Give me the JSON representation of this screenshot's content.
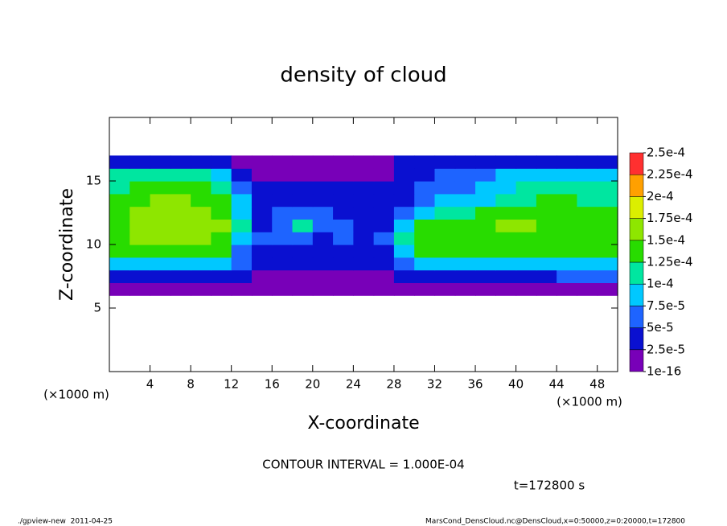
{
  "chart_data": {
    "type": "contour",
    "title": "density of cloud",
    "x_label": "X-coordinate",
    "y_label": "Z-coordinate",
    "x_unit_label": "(×1000 m)",
    "y_unit_label": "(×1000 m)",
    "contour_note": "CONTOUR INTERVAL = 1.000E-04",
    "time_label": "t=172800 s",
    "footer_left": "./gpview-new  2011-04-25",
    "footer_right": "MarsCond_DensCloud.nc@DensCloud,x=0:50000,z=0:20000,t=172800",
    "xlim": [
      0,
      50
    ],
    "ylim": [
      0,
      20
    ],
    "xticks": [
      4,
      8,
      12,
      16,
      20,
      24,
      28,
      32,
      36,
      40,
      44,
      48
    ],
    "yticks": [
      5,
      10,
      15
    ],
    "x": [
      1,
      3,
      5,
      7,
      9,
      11,
      13,
      15,
      17,
      19,
      21,
      23,
      25,
      27,
      29,
      31,
      33,
      35,
      37,
      39,
      41,
      43,
      45,
      47,
      49
    ],
    "y": [
      6.5,
      7.5,
      8.5,
      9.5,
      10.5,
      11.5,
      12.5,
      13.5,
      14.5,
      15.5,
      16.5
    ],
    "z": [
      [
        1.5e-05,
        1.5e-05,
        1.5e-05,
        1.5e-05,
        1.5e-05,
        1.5e-05,
        1.5e-05,
        1.5e-05,
        1.5e-05,
        1.5e-05,
        1.5e-05,
        1.5e-05,
        1.5e-05,
        1.5e-05,
        1.5e-05,
        1.5e-05,
        1.5e-05,
        1.5e-05,
        1.5e-05,
        1.5e-05,
        1.5e-05,
        1.5e-05,
        1.5e-05,
        1.5e-05,
        1.5e-05
      ],
      [
        4e-05,
        4e-05,
        4e-05,
        4e-05,
        4e-05,
        4e-05,
        3e-05,
        2e-05,
        2e-05,
        2e-05,
        2e-05,
        2e-05,
        2e-05,
        2e-05,
        4e-05,
        4e-05,
        4e-05,
        4e-05,
        4e-05,
        4e-05,
        4e-05,
        4e-05,
        5e-05,
        5e-05,
        5e-05
      ],
      [
        8.5e-05,
        8.5e-05,
        8.5e-05,
        8.5e-05,
        8.5e-05,
        8.5e-05,
        5e-05,
        3.5e-05,
        3.5e-05,
        3.5e-05,
        3.5e-05,
        3.5e-05,
        3.5e-05,
        3.5e-05,
        5e-05,
        9e-05,
        9e-05,
        9e-05,
        9e-05,
        9e-05,
        9e-05,
        9e-05,
        9e-05,
        9e-05,
        9e-05
      ],
      [
        0.00013,
        0.00013,
        0.00013,
        0.00013,
        0.00013,
        0.00013,
        7e-05,
        4.5e-05,
        4.5e-05,
        4.5e-05,
        4.5e-05,
        4.5e-05,
        4.5e-05,
        4.5e-05,
        8e-05,
        0.000125,
        0.000125,
        0.000125,
        0.000125,
        0.000125,
        0.000125,
        0.000125,
        0.000125,
        0.000125,
        0.000125
      ],
      [
        0.00014,
        0.000155,
        0.00016,
        0.00016,
        0.000155,
        0.000145,
        9e-05,
        5e-05,
        6e-05,
        5e-05,
        4e-05,
        5e-05,
        4e-05,
        5e-05,
        0.0001,
        0.00013,
        0.000135,
        0.00014,
        0.000145,
        0.000145,
        0.000145,
        0.00014,
        0.00014,
        0.000135,
        0.00013
      ],
      [
        0.000145,
        0.00016,
        0.00017,
        0.00017,
        0.00016,
        0.00015,
        0.0001,
        4e-05,
        5e-05,
        0.000105,
        6e-05,
        5e-05,
        4e-05,
        4e-05,
        9e-05,
        0.000125,
        0.00013,
        0.00014,
        0.000145,
        0.00015,
        0.00015,
        0.000145,
        0.00014,
        0.000135,
        0.00013
      ],
      [
        0.000145,
        0.00016,
        0.000165,
        0.000165,
        0.000155,
        0.000145,
        9e-05,
        4e-05,
        5e-05,
        6e-05,
        5e-05,
        4e-05,
        4e-05,
        3e-05,
        5e-05,
        9e-05,
        0.00011,
        0.00012,
        0.000135,
        0.00014,
        0.00014,
        0.000135,
        0.00013,
        0.00013,
        0.000125
      ],
      [
        0.000135,
        0.000145,
        0.00015,
        0.00015,
        0.000145,
        0.000135,
        8e-05,
        3.5e-05,
        4e-05,
        4e-05,
        3.5e-05,
        3e-05,
        3e-05,
        3e-05,
        4e-05,
        6e-05,
        8e-05,
        9e-05,
        9e-05,
        0.00011,
        0.00012,
        0.000125,
        0.000125,
        0.00012,
        0.00012
      ],
      [
        0.00012,
        0.000125,
        0.00013,
        0.00013,
        0.000125,
        0.000115,
        6e-05,
        3e-05,
        3e-05,
        3e-05,
        3e-05,
        3e-05,
        3e-05,
        3e-05,
        3e-05,
        5e-05,
        6e-05,
        7e-05,
        8e-05,
        9e-05,
        0.000105,
        0.00011,
        0.00011,
        0.00011,
        0.000105
      ],
      [
        0.0001,
        0.000105,
        0.000105,
        0.000105,
        0.0001,
        9e-05,
        4e-05,
        2e-05,
        2e-05,
        2e-05,
        2e-05,
        2e-05,
        2e-05,
        2e-05,
        3e-05,
        4e-05,
        5e-05,
        6e-05,
        7e-05,
        8e-05,
        8.5e-05,
        9e-05,
        9e-05,
        9e-05,
        9e-05
      ],
      [
        3e-05,
        3e-05,
        3e-05,
        3e-05,
        3e-05,
        3e-05,
        2e-05,
        1e-05,
        1e-05,
        1e-05,
        1e-05,
        1e-05,
        1e-05,
        1e-05,
        3e-05,
        3e-05,
        3e-05,
        3e-05,
        3e-05,
        3e-05,
        3e-05,
        3e-05,
        3e-05,
        3e-05,
        3e-05
      ]
    ],
    "levels": [
      {
        "value": 1e-16,
        "label": "1e-16"
      },
      {
        "value": 2.5e-05,
        "label": "2.5e-5"
      },
      {
        "value": 5e-05,
        "label": "5e-5"
      },
      {
        "value": 7.5e-05,
        "label": "7.5e-5"
      },
      {
        "value": 0.0001,
        "label": "1e-4"
      },
      {
        "value": 0.000125,
        "label": "1.25e-4"
      },
      {
        "value": 0.00015,
        "label": "1.5e-4"
      },
      {
        "value": 0.000175,
        "label": "1.75e-4"
      },
      {
        "value": 0.0002,
        "label": "2e-4"
      },
      {
        "value": 0.000225,
        "label": "2.25e-4"
      },
      {
        "value": 0.00025,
        "label": "2.5e-4"
      }
    ],
    "colors": [
      "#7800b8",
      "#0a10d0",
      "#1e64ff",
      "#00c8ff",
      "#00e6a0",
      "#28dc00",
      "#8ee600",
      "#dcee00",
      "#ffa000",
      "#ff3030"
    ]
  }
}
